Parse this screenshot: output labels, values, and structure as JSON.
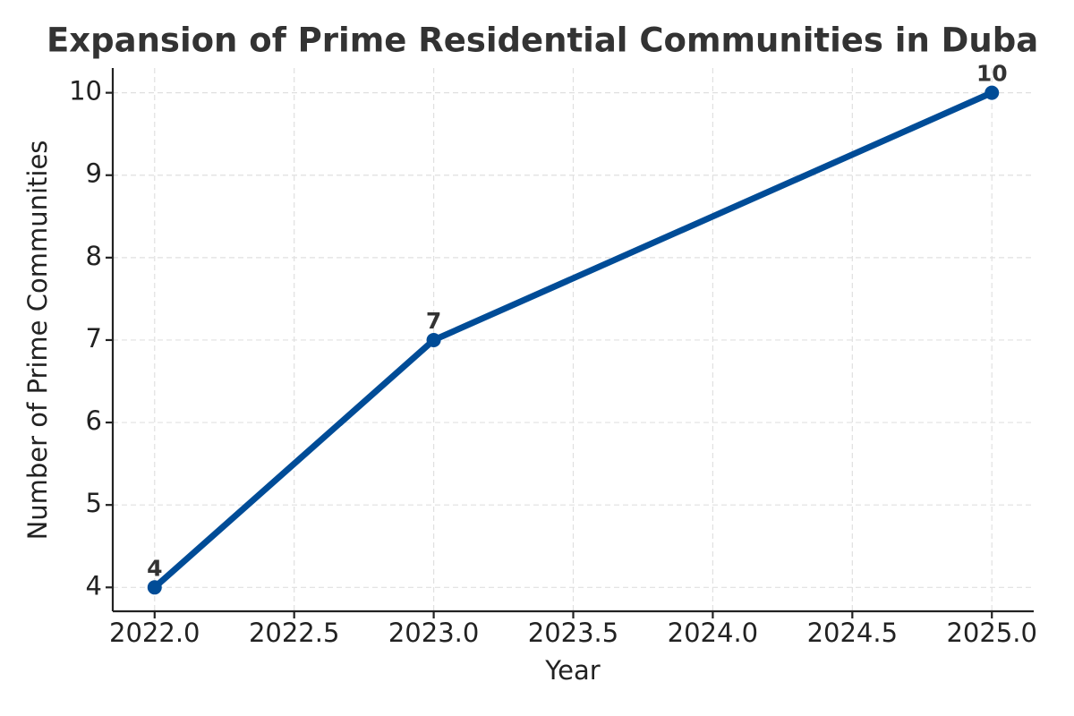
{
  "chart_data": {
    "type": "line",
    "title": "Expansion of Prime Residential Communities in Duba",
    "xlabel": "Year",
    "ylabel": "Number of Prime Communities",
    "x": [
      2022,
      2023,
      2025
    ],
    "values": [
      4,
      7,
      10
    ],
    "color": "#004c97",
    "xlim": [
      2021.85,
      2025.15
    ],
    "ylim": [
      3.71,
      10.3
    ],
    "xticks": [
      {
        "value": 2022,
        "label": "2022.0"
      },
      {
        "value": 2022.5,
        "label": "2022.5"
      },
      {
        "value": 2023,
        "label": "2023.0"
      },
      {
        "value": 2023.5,
        "label": "2023.5"
      },
      {
        "value": 2024,
        "label": "2024.0"
      },
      {
        "value": 2024.5,
        "label": "2024.5"
      },
      {
        "value": 2025,
        "label": "2025.0"
      }
    ],
    "yticks": [
      4,
      5,
      6,
      7,
      8,
      9,
      10
    ],
    "grid": true
  }
}
